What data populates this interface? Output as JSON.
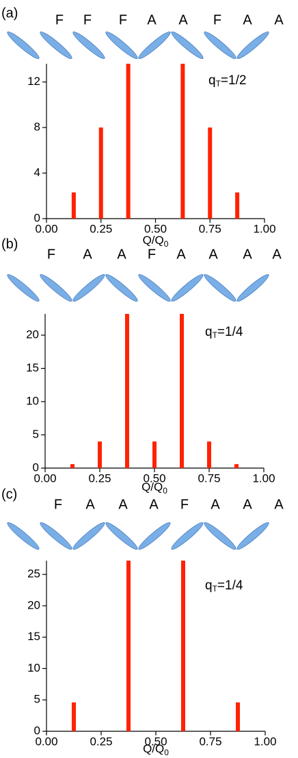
{
  "chart_data": [
    {
      "type": "bar",
      "panel_label": "(a)",
      "spins": [
        "F",
        "F",
        "F",
        "A",
        "A",
        "F",
        "A",
        "A"
      ],
      "annotation": [
        "q",
        "T",
        "=1/2"
      ],
      "xlabel": [
        "Q/Q",
        "0"
      ],
      "x": [
        0.125,
        0.25,
        0.375,
        0.625,
        0.75,
        0.875
      ],
      "values": [
        2.3,
        8,
        13.6,
        13.6,
        8,
        2.3
      ],
      "color": "#ff2200",
      "xlim": [
        0,
        1
      ],
      "xticks": [
        {
          "value": 0,
          "label": "0.00"
        },
        {
          "value": 0.25,
          "label": "0.25"
        },
        {
          "value": 0.5,
          "label": "0.50"
        },
        {
          "value": 0.75,
          "label": "0.75"
        },
        {
          "value": 1,
          "label": "1.00"
        }
      ],
      "ylim": [
        0,
        13.6
      ],
      "yticks": [
        0,
        4,
        8,
        12
      ]
    },
    {
      "type": "bar",
      "panel_label": "(b)",
      "spins": [
        "F",
        "A",
        "A",
        "F",
        "A",
        "A",
        "A",
        "A"
      ],
      "annotation": [
        "q",
        "T",
        "=1/4"
      ],
      "xlabel": [
        "Q/Q",
        "0"
      ],
      "x": [
        0.125,
        0.25,
        0.375,
        0.5,
        0.625,
        0.75,
        0.875
      ],
      "values": [
        0.6,
        4,
        23.2,
        4,
        23.2,
        4,
        0.6
      ],
      "color": "#ff2200",
      "xlim": [
        0,
        1
      ],
      "xticks": [
        {
          "value": 0,
          "label": "0.00"
        },
        {
          "value": 0.25,
          "label": "0.25"
        },
        {
          "value": 0.5,
          "label": "0.50"
        },
        {
          "value": 0.75,
          "label": "0.75"
        },
        {
          "value": 1,
          "label": "1.00"
        }
      ],
      "ylim": [
        0,
        23.2
      ],
      "yticks": [
        0,
        5,
        10,
        15,
        20
      ]
    },
    {
      "type": "bar",
      "panel_label": "(c)",
      "spins": [
        "F",
        "A",
        "A",
        "A",
        "F",
        "A",
        "A",
        "A"
      ],
      "annotation": [
        "q",
        "T",
        "=1/4"
      ],
      "xlabel": [
        "Q/Q",
        "0"
      ],
      "x": [
        0.125,
        0.375,
        0.625,
        0.875
      ],
      "values": [
        4.6,
        27.2,
        27.2,
        4.6
      ],
      "color": "#ff2200",
      "xlim": [
        0,
        1
      ],
      "xticks": [
        {
          "value": 0,
          "label": "0.00"
        },
        {
          "value": 0.25,
          "label": "0.25"
        },
        {
          "value": 0.5,
          "label": "0.50"
        },
        {
          "value": 0.75,
          "label": "0.75"
        },
        {
          "value": 1,
          "label": "1.00"
        }
      ],
      "ylim": [
        0,
        27.2
      ],
      "yticks": [
        0,
        5,
        10,
        15,
        20,
        25
      ]
    }
  ]
}
